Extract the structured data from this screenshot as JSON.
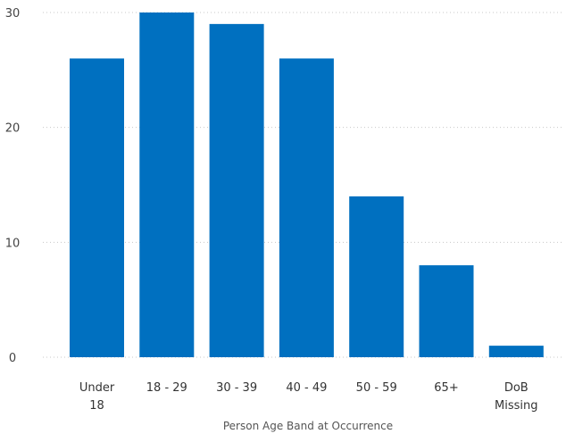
{
  "chart_data": {
    "type": "bar",
    "title": "",
    "xlabel": "Person Age Band at Occurrence",
    "ylabel": "",
    "categories": [
      "Under 18",
      "18 - 29",
      "30 - 39",
      "40 - 49",
      "50 - 59",
      "65+",
      "DoB Missing"
    ],
    "category_lines": [
      [
        "Under",
        "18"
      ],
      [
        "18 - 29"
      ],
      [
        "30 - 39"
      ],
      [
        "40 - 49"
      ],
      [
        "50 - 59"
      ],
      [
        "65+"
      ],
      [
        "DoB",
        "Missing"
      ]
    ],
    "values": [
      26,
      30,
      29,
      26,
      14,
      8,
      1
    ],
    "ylim": [
      0,
      30
    ],
    "yticks": [
      0,
      10,
      20,
      30
    ],
    "grid": true,
    "bar_color": "#0070c0"
  }
}
